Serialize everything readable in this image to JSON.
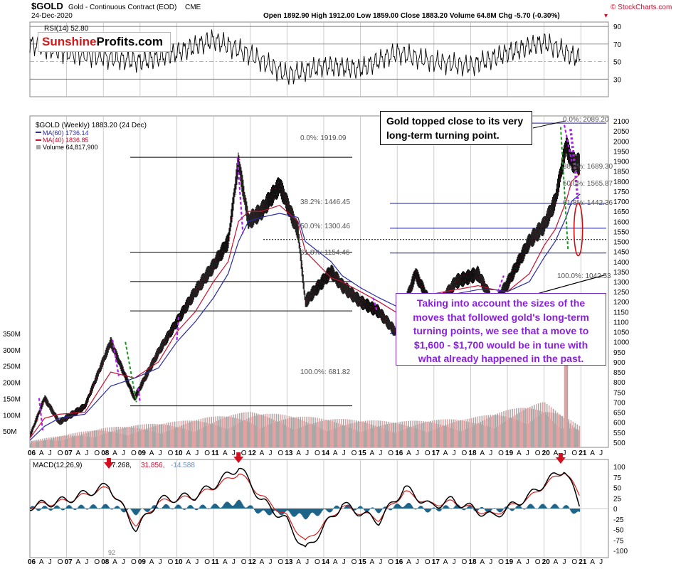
{
  "header": {
    "symbol": "$GOLD",
    "name": "Gold - Continuous Contract (EOD)",
    "exchange": "CME",
    "date": "24-Dec-2020",
    "quote": "Open 1892.90  High 1912.00  Low 1859.00  Close 1883.20  Volume 64.8M  Chg -5.70 (-0.30%)",
    "quote_marker": "▾",
    "brand": "© StockCharts.com"
  },
  "logo": {
    "part1": "Sunshine",
    "part2": "Profits.com"
  },
  "rsi": {
    "label": "RSI(14) 52.80",
    "levels": [
      "90",
      "70",
      "50",
      "30"
    ]
  },
  "price_legend": {
    "title": "$GOLD (Weekly) 1883.20 (24 Dec)",
    "ma60": "MA(60) 1736.14",
    "ma40": "MA(40) 1836.85",
    "volume": "Volume 64,817,900"
  },
  "volume_axis": [
    "350M",
    "300M",
    "250M",
    "200M",
    "150M",
    "100M",
    "50M"
  ],
  "price_axis": [
    "2100",
    "2050",
    "2000",
    "1950",
    "1900",
    "1850",
    "1800",
    "1750",
    "1700",
    "1650",
    "1600",
    "1550",
    "1500",
    "1450",
    "1400",
    "1350",
    "1300",
    "1250",
    "1200",
    "1150",
    "1100",
    "1050",
    "1000",
    "950",
    "900",
    "850",
    "800",
    "750",
    "700",
    "650",
    "600",
    "550",
    "500"
  ],
  "fib_left": {
    "l0": "0.0%: 1919.09",
    "l382": "38.2%: 1446.45",
    "l50": "50.0%: 1300.46",
    "l618": "61.8%: 1154.46",
    "l100": "100.0%: 681.82"
  },
  "fib_right": {
    "l0": "0.0%: 2089.20",
    "l382": "38.2%: 1689.30",
    "l50": "50.0%: 1565.87",
    "l618": "61.8%: 1442.36",
    "l100": "100.0%: 1042.53"
  },
  "callouts": {
    "top": "Gold topped close to its very long-term turning point.",
    "bottom": "Taking into account the sizes of the moves that followed gold's long-term turning points, we see that a move to $1,600 - $1,700 would be in tune with what already happened in the past."
  },
  "macd": {
    "label": "MACD(12,26,9)",
    "v1": "7.268,",
    "v2": "31.856,",
    "v3": "-14.588",
    "axis": [
      "100",
      "75",
      "50",
      "25",
      "0",
      "-25",
      "-50",
      "-75",
      "-100"
    ],
    "note": "92"
  },
  "x_labels": [
    {
      "t": "06",
      "b": true
    },
    {
      "t": "A"
    },
    {
      "t": "J"
    },
    {
      "t": "O"
    },
    {
      "t": "07",
      "b": true
    },
    {
      "t": "A"
    },
    {
      "t": "J"
    },
    {
      "t": "O"
    },
    {
      "t": "08",
      "b": true
    },
    {
      "t": "A"
    },
    {
      "t": "J"
    },
    {
      "t": "O"
    },
    {
      "t": "09",
      "b": true
    },
    {
      "t": "A"
    },
    {
      "t": "J"
    },
    {
      "t": "O"
    },
    {
      "t": "10",
      "b": true
    },
    {
      "t": "A"
    },
    {
      "t": "J"
    },
    {
      "t": "O"
    },
    {
      "t": "11",
      "b": true
    },
    {
      "t": "A"
    },
    {
      "t": "J"
    },
    {
      "t": "O"
    },
    {
      "t": "12",
      "b": true
    },
    {
      "t": "A"
    },
    {
      "t": "J"
    },
    {
      "t": "O"
    },
    {
      "t": "13",
      "b": true
    },
    {
      "t": "A"
    },
    {
      "t": "J"
    },
    {
      "t": "O"
    },
    {
      "t": "14",
      "b": true
    },
    {
      "t": "A"
    },
    {
      "t": "J"
    },
    {
      "t": "O"
    },
    {
      "t": "15",
      "b": true
    },
    {
      "t": "A"
    },
    {
      "t": "J"
    },
    {
      "t": "O"
    },
    {
      "t": "16",
      "b": true
    },
    {
      "t": "A"
    },
    {
      "t": "J"
    },
    {
      "t": "O"
    },
    {
      "t": "17",
      "b": true
    },
    {
      "t": "A"
    },
    {
      "t": "J"
    },
    {
      "t": "O"
    },
    {
      "t": "18",
      "b": true
    },
    {
      "t": "A"
    },
    {
      "t": "J"
    },
    {
      "t": "O"
    },
    {
      "t": "19",
      "b": true
    },
    {
      "t": "A"
    },
    {
      "t": "J"
    },
    {
      "t": "O"
    },
    {
      "t": "20",
      "b": true
    },
    {
      "t": "A"
    },
    {
      "t": "J"
    },
    {
      "t": "O"
    },
    {
      "t": "21",
      "b": true
    },
    {
      "t": "A"
    },
    {
      "t": "J"
    }
  ],
  "colors": {
    "ma60": "#2b2ba8",
    "ma40": "#c8102e",
    "price": "#111111",
    "volume_up": "#e2a3a3",
    "volume_down": "#a8a8a8",
    "fib_line": "#1a1aa0",
    "trend_line": "#000000",
    "annotation_purple": "#b01ff0",
    "annotation_green": "#1a9a1a",
    "ellipse": "#d01010",
    "macd_hist": "#1e6488",
    "arrow": "#d01020"
  },
  "chart_data": [
    {
      "type": "line",
      "title": "RSI(14) 52.80",
      "ylim": [
        10,
        95
      ],
      "x": [
        2006,
        2007,
        2008,
        2009,
        2010,
        2011,
        2012,
        2013,
        2014,
        2015,
        2016,
        2017,
        2018,
        2019,
        2020,
        2020.98
      ],
      "values": [
        70,
        60,
        55,
        50,
        60,
        75,
        58,
        35,
        45,
        42,
        60,
        50,
        45,
        60,
        72,
        52.8
      ]
    },
    {
      "type": "line",
      "title": "$GOLD (Weekly) 1883.20 (24 Dec)",
      "ylim": [
        500,
        2100
      ],
      "x": [
        2006.0,
        2006.4,
        2006.8,
        2007.5,
        2008.2,
        2008.85,
        2009.5,
        2010.0,
        2010.5,
        2011.0,
        2011.4,
        2011.68,
        2011.95,
        2012.3,
        2012.8,
        2013.3,
        2013.5,
        2014.2,
        2014.5,
        2015.0,
        2015.5,
        2015.95,
        2016.5,
        2017.0,
        2017.6,
        2018.2,
        2018.65,
        2019.0,
        2019.6,
        2020.0,
        2020.3,
        2020.6,
        2020.75,
        2020.98
      ],
      "series": [
        {
          "name": "$GOLD",
          "values": [
            530,
            720,
            600,
            680,
            1000,
            720,
            950,
            1100,
            1250,
            1380,
            1500,
            1900,
            1600,
            1650,
            1780,
            1550,
            1200,
            1350,
            1280,
            1200,
            1150,
            1050,
            1340,
            1150,
            1300,
            1340,
            1180,
            1290,
            1500,
            1580,
            1700,
            1980,
            1900,
            1883.2
          ]
        },
        {
          "name": "MA(40)",
          "values": [
            520,
            620,
            640,
            650,
            850,
            820,
            900,
            1050,
            1150,
            1300,
            1400,
            1600,
            1650,
            1650,
            1680,
            1600,
            1450,
            1320,
            1300,
            1250,
            1200,
            1150,
            1200,
            1240,
            1260,
            1280,
            1260,
            1250,
            1340,
            1480,
            1560,
            1700,
            1800,
            1836.85
          ]
        },
        {
          "name": "MA(60)",
          "values": [
            510,
            580,
            620,
            640,
            780,
            820,
            870,
            1000,
            1100,
            1220,
            1340,
            1500,
            1600,
            1620,
            1640,
            1620,
            1500,
            1400,
            1330,
            1270,
            1220,
            1180,
            1180,
            1210,
            1240,
            1260,
            1260,
            1250,
            1300,
            1420,
            1500,
            1620,
            1700,
            1736.14
          ]
        }
      ]
    },
    {
      "type": "bar",
      "title": "Volume 64,817,900",
      "ylim": [
        0,
        350000000
      ],
      "x": [
        2006,
        2008,
        2010,
        2012,
        2014,
        2016,
        2018,
        2020,
        2020.98
      ],
      "values": [
        20000000,
        60000000,
        80000000,
        110000000,
        90000000,
        80000000,
        90000000,
        140000000,
        64817900
      ]
    },
    {
      "type": "line",
      "title": "MACD(12,26,9)",
      "ylim": [
        -105,
        110
      ],
      "x": [
        2006,
        2007,
        2008.15,
        2008.9,
        2009.5,
        2010.5,
        2011.0,
        2011.7,
        2012.3,
        2013.0,
        2013.5,
        2014.5,
        2015.5,
        2016.2,
        2016.9,
        2017.5,
        2018.6,
        2019.6,
        2020.0,
        2020.55,
        2020.98
      ],
      "series": [
        {
          "name": "MACD",
          "values": [
            5,
            20,
            55,
            -50,
            20,
            30,
            55,
            100,
            20,
            -30,
            -100,
            10,
            -30,
            50,
            5,
            20,
            -20,
            30,
            60,
            95,
            7.268
          ]
        },
        {
          "name": "Signal",
          "values": [
            5,
            18,
            50,
            -40,
            15,
            28,
            50,
            85,
            30,
            -20,
            -80,
            5,
            -25,
            40,
            10,
            15,
            -15,
            25,
            55,
            90,
            31.856
          ]
        },
        {
          "name": "Histogram",
          "values": [
            0,
            2,
            5,
            -10,
            5,
            2,
            5,
            15,
            -10,
            -10,
            -20,
            5,
            -5,
            10,
            -5,
            5,
            -5,
            5,
            5,
            5,
            -14.588
          ]
        }
      ]
    }
  ]
}
